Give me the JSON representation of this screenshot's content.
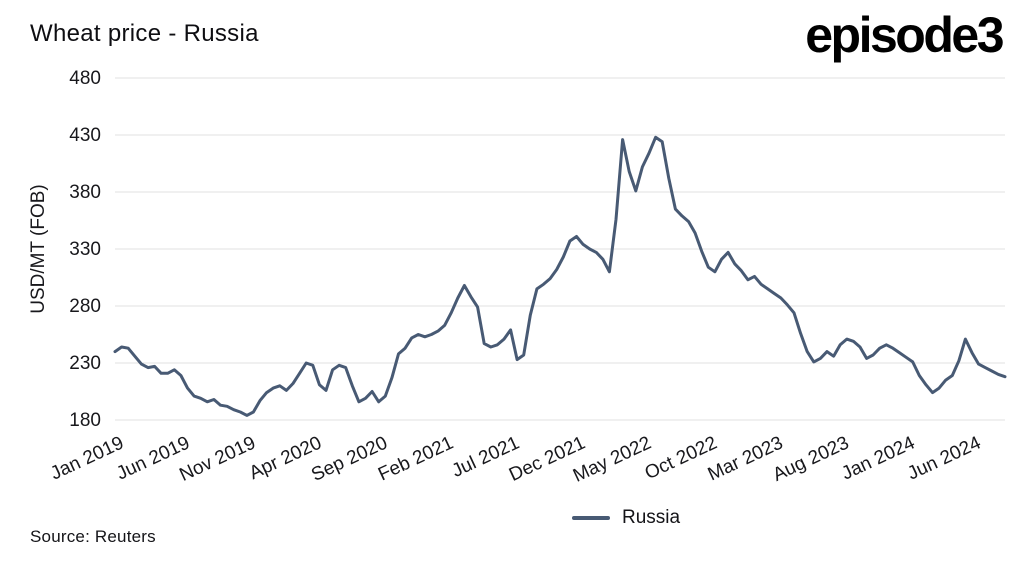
{
  "header": {
    "logo": "episode3"
  },
  "footer": {
    "source": "Source: Reuters"
  },
  "chart_data": {
    "type": "line",
    "title": "Wheat price - Russia",
    "xlabel": "",
    "ylabel": "USD/MT (FOB)",
    "ylim": [
      180,
      480
    ],
    "y_ticks": [
      180,
      230,
      280,
      330,
      380,
      430,
      480
    ],
    "grid": "horizontal",
    "grid_color": "#e2e2e2",
    "legend_position": "bottom",
    "x_start": "Jan 2019",
    "x_end": "Aug 2024",
    "points_per_month": 2,
    "x_ticks": [
      {
        "label": "Jan 2019",
        "index": 0
      },
      {
        "label": "Jun 2019",
        "index": 10
      },
      {
        "label": "Nov 2019",
        "index": 20
      },
      {
        "label": "Apr 2020",
        "index": 30
      },
      {
        "label": "Sep 2020",
        "index": 40
      },
      {
        "label": "Feb 2021",
        "index": 50
      },
      {
        "label": "Jul 2021",
        "index": 60
      },
      {
        "label": "Dec 2021",
        "index": 70
      },
      {
        "label": "May 2022",
        "index": 80
      },
      {
        "label": "Oct 2022",
        "index": 90
      },
      {
        "label": "Mar 2023",
        "index": 100
      },
      {
        "label": "Aug 2023",
        "index": 110
      },
      {
        "label": "Jan 2024",
        "index": 120
      },
      {
        "label": "Jun 2024",
        "index": 130
      }
    ],
    "series": [
      {
        "name": "Russia",
        "color": "#485a74",
        "values": [
          240,
          244,
          243,
          236,
          229,
          226,
          227,
          221,
          221,
          224,
          219,
          208,
          201,
          199,
          196,
          198,
          193,
          192,
          189,
          187,
          184,
          187,
          197,
          204,
          208,
          210,
          206,
          212,
          221,
          230,
          228,
          211,
          206,
          224,
          228,
          226,
          210,
          196,
          199,
          205,
          196,
          201,
          217,
          238,
          243,
          252,
          255,
          253,
          255,
          258,
          263,
          274,
          287,
          298,
          288,
          279,
          247,
          244,
          246,
          251,
          259,
          233,
          237,
          272,
          295,
          299,
          304,
          312,
          323,
          337,
          341,
          334,
          330,
          327,
          321,
          310,
          356,
          426,
          398,
          381,
          402,
          414,
          428,
          424,
          392,
          365,
          359,
          354,
          344,
          328,
          314,
          310,
          321,
          327,
          317,
          311,
          303,
          306,
          299,
          295,
          291,
          287,
          281,
          274,
          256,
          240,
          231,
          234,
          240,
          236,
          246,
          251,
          249,
          244,
          234,
          237,
          243,
          246,
          243,
          239,
          235,
          231,
          219,
          211,
          204,
          208,
          215,
          219,
          232,
          251,
          239,
          229,
          226,
          223,
          220,
          218
        ]
      }
    ]
  }
}
